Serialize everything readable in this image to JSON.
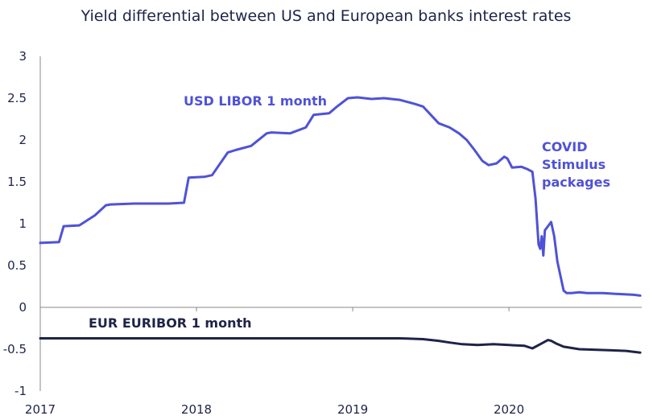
{
  "chart_data": {
    "type": "line",
    "title": "Yield differential between US and European banks interest rates",
    "xlabel": "",
    "ylabel": "",
    "xlim": [
      2017.0,
      2020.85
    ],
    "ylim": [
      -1,
      3
    ],
    "x_ticks": [
      "2017",
      "2018",
      "2019",
      "2020"
    ],
    "y_ticks": [
      "3",
      "2.5",
      "2",
      "1.5",
      "1",
      "0.5",
      "0",
      "-0.5",
      "-1"
    ],
    "grid": false,
    "annotation": [
      "COVID",
      "Stimulus",
      "packages"
    ],
    "series": [
      {
        "name": "USD LIBOR 1 month",
        "color": "#4f52d6",
        "x": [
          2017.0,
          2017.12,
          2017.15,
          2017.25,
          2017.35,
          2017.42,
          2017.45,
          2017.6,
          2017.82,
          2017.92,
          2017.95,
          2018.05,
          2018.1,
          2018.2,
          2018.25,
          2018.35,
          2018.45,
          2018.48,
          2018.6,
          2018.7,
          2018.75,
          2018.85,
          2018.9,
          2018.97,
          2019.03,
          2019.12,
          2019.2,
          2019.3,
          2019.4,
          2019.45,
          2019.5,
          2019.55,
          2019.62,
          2019.68,
          2019.73,
          2019.78,
          2019.83,
          2019.87,
          2019.92,
          2019.97,
          2019.99,
          2020.02,
          2020.08,
          2020.12,
          2020.15,
          2020.17,
          2020.19,
          2020.2,
          2020.21,
          2020.22,
          2020.23,
          2020.25,
          2020.27,
          2020.29,
          2020.31,
          2020.35,
          2020.37,
          2020.4,
          2020.45,
          2020.5,
          2020.6,
          2020.7,
          2020.8,
          2020.84
        ],
        "values": [
          0.77,
          0.78,
          0.97,
          0.98,
          1.1,
          1.22,
          1.23,
          1.24,
          1.24,
          1.25,
          1.55,
          1.56,
          1.58,
          1.85,
          1.88,
          1.93,
          2.08,
          2.09,
          2.08,
          2.15,
          2.3,
          2.32,
          2.4,
          2.5,
          2.51,
          2.49,
          2.5,
          2.48,
          2.43,
          2.4,
          2.3,
          2.2,
          2.15,
          2.08,
          2.0,
          1.88,
          1.75,
          1.7,
          1.72,
          1.8,
          1.78,
          1.67,
          1.68,
          1.65,
          1.62,
          1.3,
          0.75,
          0.7,
          0.85,
          0.62,
          0.92,
          0.97,
          1.02,
          0.85,
          0.55,
          0.2,
          0.17,
          0.17,
          0.18,
          0.17,
          0.17,
          0.16,
          0.15,
          0.14
        ]
      },
      {
        "name": "EUR EURIBOR 1 month",
        "color": "#1e2447",
        "x": [
          2017.0,
          2017.5,
          2018.0,
          2018.5,
          2019.0,
          2019.3,
          2019.45,
          2019.55,
          2019.62,
          2019.7,
          2019.8,
          2019.9,
          2020.0,
          2020.1,
          2020.15,
          2020.2,
          2020.25,
          2020.27,
          2020.3,
          2020.35,
          2020.45,
          2020.6,
          2020.75,
          2020.84
        ],
        "values": [
          -0.37,
          -0.37,
          -0.37,
          -0.37,
          -0.37,
          -0.37,
          -0.38,
          -0.4,
          -0.42,
          -0.44,
          -0.45,
          -0.44,
          -0.45,
          -0.46,
          -0.49,
          -0.44,
          -0.39,
          -0.4,
          -0.43,
          -0.47,
          -0.5,
          -0.51,
          -0.52,
          -0.54
        ]
      }
    ]
  }
}
